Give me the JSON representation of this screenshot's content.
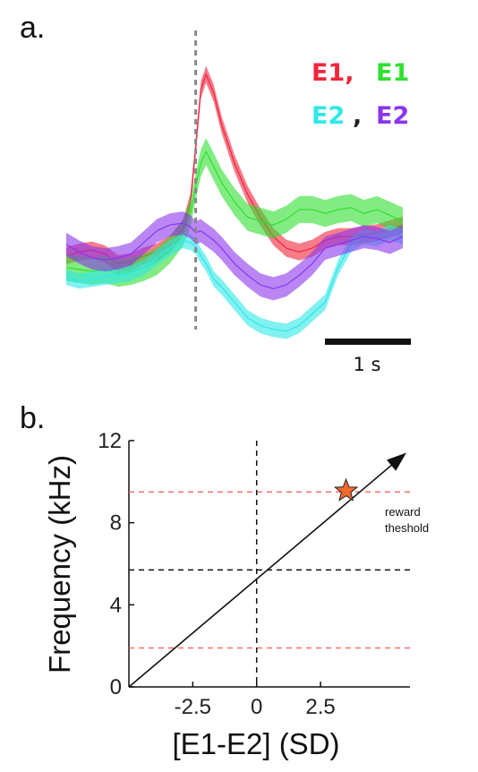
{
  "figure": {
    "panel_a_label": "a.",
    "panel_b_label": "b."
  },
  "chart_data": [
    {
      "type": "line",
      "panel": "a",
      "legend": [
        {
          "text": "E1,",
          "color": "#f0253c"
        },
        {
          "text": "E1",
          "color": "#2fe02f"
        },
        {
          "text": "E2",
          "color": "#2fe8e8"
        },
        {
          "text": ",",
          "color": "#222222"
        },
        {
          "text": "E2",
          "color": "#8a36ec"
        }
      ],
      "legend_placement": "top-right",
      "scalebar_label": "1 s",
      "event_marker": "dashed vertical line at event onset",
      "time_s": [
        -2.5,
        -2.25,
        -2,
        -1.75,
        -1.5,
        -1.25,
        -1,
        -0.75,
        -0.5,
        -0.25,
        -0.1,
        0,
        0.1,
        0.2,
        0.35,
        0.5,
        0.75,
        1,
        1.25,
        1.5,
        1.75,
        2,
        2.25,
        2.5,
        2.75,
        3,
        3.25,
        3.5,
        3.75,
        4
      ],
      "series": [
        {
          "name": "E1",
          "color": "#f0253c",
          "band": 0.22,
          "values": [
            0.0,
            0.1,
            0.15,
            0.05,
            -0.2,
            -0.15,
            0.0,
            0.1,
            0.3,
            0.7,
            1.4,
            2.8,
            4.3,
            4.7,
            4.2,
            3.4,
            2.4,
            1.6,
            1.0,
            0.5,
            0.2,
            0.1,
            0.2,
            0.4,
            0.5,
            0.5,
            0.55,
            0.6,
            0.7,
            0.8
          ]
        },
        {
          "name": "E1",
          "color": "#2fe02f",
          "band": 0.35,
          "values": [
            -0.3,
            -0.35,
            -0.4,
            -0.35,
            -0.45,
            -0.4,
            -0.3,
            -0.15,
            0.15,
            0.6,
            1.1,
            1.8,
            2.4,
            2.7,
            2.3,
            1.9,
            1.4,
            1.0,
            0.9,
            0.8,
            0.95,
            1.2,
            1.2,
            1.1,
            1.2,
            1.25,
            1.1,
            1.2,
            1.05,
            0.9
          ]
        },
        {
          "name": "E2",
          "color": "#2fe8e8",
          "band": 0.2,
          "values": [
            -0.55,
            -0.65,
            -0.6,
            -0.55,
            -0.5,
            -0.45,
            -0.3,
            -0.05,
            0.2,
            0.4,
            0.35,
            0.25,
            0.0,
            -0.2,
            -0.6,
            -0.8,
            -1.2,
            -1.6,
            -1.8,
            -1.9,
            -1.95,
            -1.8,
            -1.5,
            -1.2,
            -0.3,
            0.3,
            0.5,
            0.45,
            0.6,
            0.5
          ]
        },
        {
          "name": "E2",
          "color": "#8a36ec",
          "band": 0.3,
          "values": [
            0.3,
            0.1,
            -0.05,
            -0.1,
            -0.05,
            0.05,
            0.35,
            0.65,
            0.8,
            0.85,
            0.75,
            0.6,
            0.65,
            0.55,
            0.4,
            0.2,
            -0.2,
            -0.5,
            -0.75,
            -0.85,
            -0.75,
            -0.5,
            -0.2,
            0.2,
            0.3,
            0.4,
            0.5,
            0.45,
            0.35,
            0.5
          ]
        }
      ],
      "grid": false
    },
    {
      "type": "line",
      "panel": "b",
      "xlabel": "[E1-E2] (SD)",
      "ylabel": "Frequency (kHz)",
      "xlim": [
        -5,
        6
      ],
      "ylim": [
        0,
        12
      ],
      "xticks": [
        -2.5,
        0,
        2.5
      ],
      "xtick_labels": [
        "-2.5",
        "0",
        "2.5"
      ],
      "yticks": [
        0,
        4,
        8,
        12
      ],
      "ytick_labels": [
        "0",
        "4",
        "8",
        "12"
      ],
      "line": {
        "x": [
          -5,
          5.75
        ],
        "y": [
          0,
          11.3
        ],
        "arrow": true
      },
      "hlines": [
        {
          "y": 9.5,
          "color": "#f07070",
          "style": "dashed"
        },
        {
          "y": 5.7,
          "color": "#111111",
          "style": "dashed"
        },
        {
          "y": 1.9,
          "color": "#f07070",
          "style": "dashed"
        }
      ],
      "vline": {
        "x": 0,
        "color": "#111111",
        "style": "dashed"
      },
      "marker": {
        "x": 3.5,
        "y": 9.55,
        "shape": "star",
        "color": "#f26a2e"
      },
      "annotation": [
        "reward",
        "theshold"
      ],
      "grid": false
    }
  ]
}
